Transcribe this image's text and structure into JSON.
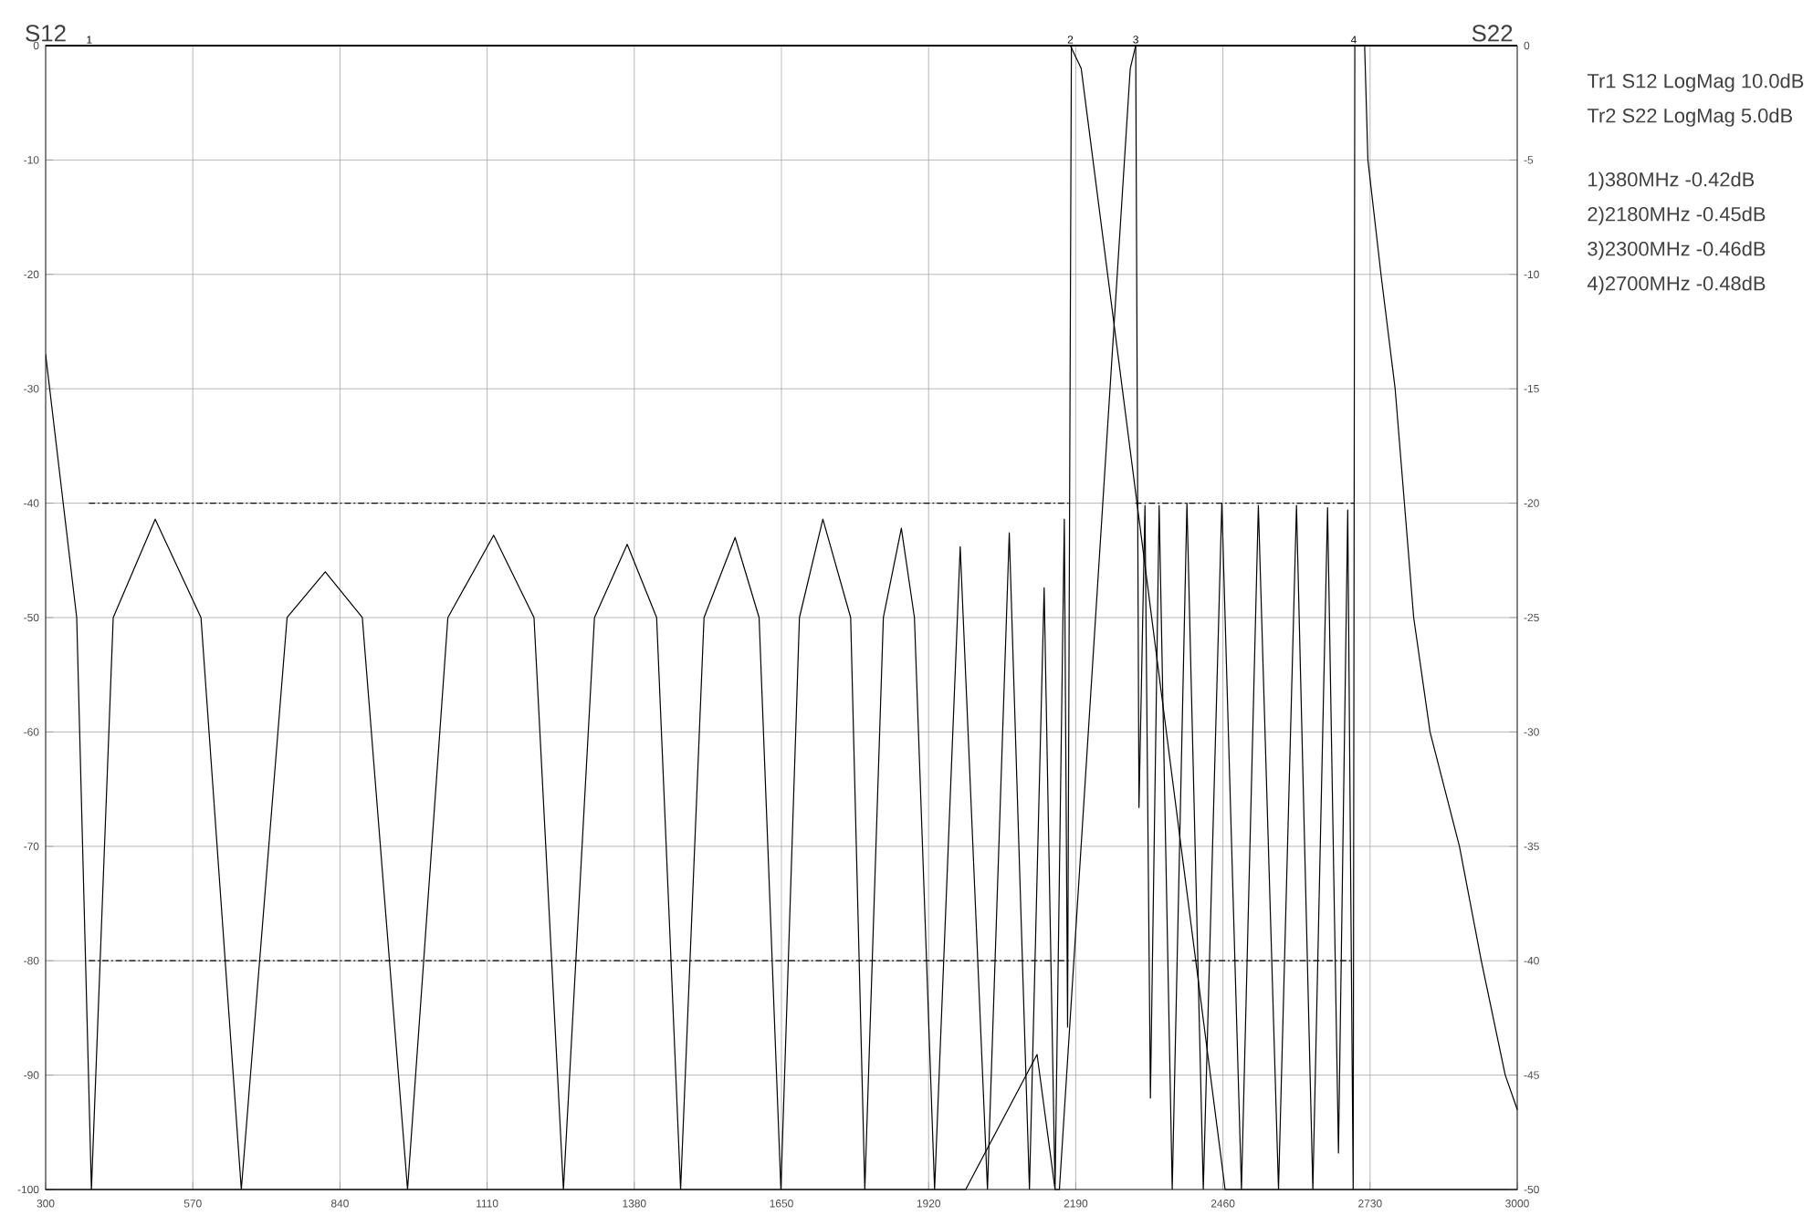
{
  "chart_data": {
    "type": "line",
    "ylabel": "S12",
    "y2label": "S22",
    "xlim": [
      300,
      3000
    ],
    "xticks": [
      300,
      570,
      840,
      1110,
      1380,
      1650,
      1920,
      2190,
      2460,
      2730,
      3000
    ],
    "ylim": [
      -100,
      0
    ],
    "yticks": [
      -100,
      -90,
      -80,
      -70,
      -60,
      -50,
      -40,
      -30,
      -20,
      -10,
      0
    ],
    "y2lim": [
      -50,
      0
    ],
    "y2ticks": [
      -50,
      -45,
      -40,
      -35,
      -30,
      -25,
      -20,
      -15,
      -10,
      -5,
      0
    ],
    "grid": true,
    "marker": "none",
    "series": [
      {
        "color": "#000000",
        "x": [
          300,
          2180,
          2200,
          2464,
          3000
        ],
        "values": [
          0,
          0,
          -2,
          -100,
          -100
        ]
      },
      {
        "color": "#000000",
        "x": [
          300,
          1988,
          2119,
          2152,
          2160,
          2290,
          2300,
          2720,
          2726,
          2750,
          2776,
          2810,
          2840,
          2894,
          2934,
          2978,
          3000
        ],
        "values": [
          -100,
          -100,
          -88.2,
          -100,
          -100,
          -2,
          0,
          0,
          -10,
          -20,
          -30,
          -50,
          -60,
          -70,
          -80,
          -90,
          -93
        ]
      },
      {
        "color": "#000000",
        "axis": "y2",
        "x": [
          300,
          357,
          384,
          424,
          501,
          585,
          659,
          743,
          813,
          881,
          964,
          1038,
          1122,
          1196,
          1250,
          1307,
          1367,
          1421,
          1465,
          1508,
          1565,
          1609,
          1649,
          1683,
          1726,
          1777,
          1803,
          1837,
          1870,
          1894,
          1931,
          1978,
          2028,
          2068,
          2105,
          2132,
          2152,
          2169,
          2175,
          2182,
          2300,
          2306,
          2317,
          2327,
          2343,
          2367,
          2394,
          2424,
          2458,
          2494,
          2525,
          2562,
          2595,
          2625,
          2652,
          2672,
          2689,
          2699,
          2702,
          3000
        ],
        "values": [
          -13.5,
          -25,
          -50,
          -25,
          -20.7,
          -25,
          -50,
          -25,
          -23,
          -25,
          -50,
          -25,
          -21.4,
          -25,
          -50,
          -25,
          -21.8,
          -25,
          -50,
          -25,
          -21.5,
          -25,
          -50,
          -25,
          -20.7,
          -25,
          -50,
          -25,
          -21.1,
          -25,
          -50,
          -21.9,
          -50,
          -21.3,
          -50,
          -23.7,
          -50,
          -20.7,
          -42.9,
          0,
          0,
          -33.3,
          -20.1,
          -46,
          -20.1,
          -50,
          -20,
          -50,
          -20,
          -50,
          -20.1,
          -50,
          -20.1,
          -50,
          -20.2,
          -48.4,
          -20.3,
          -50,
          0,
          0
        ]
      },
      {
        "color": "#000000",
        "line_style": "dashed",
        "x": [
          380,
          2180
        ],
        "values": [
          -40,
          -40
        ]
      },
      {
        "color": "#000000",
        "line_style": "dashed",
        "x": [
          380,
          2180
        ],
        "values": [
          -80,
          -80
        ]
      },
      {
        "color": "#000000",
        "line_style": "dashed",
        "x": [
          2300,
          2700
        ],
        "values": [
          -40,
          -40
        ]
      },
      {
        "color": "#000000",
        "line_style": "dashed",
        "x": [
          2404,
          2700
        ],
        "values": [
          -80,
          -80
        ]
      }
    ],
    "annotations": [
      "Tr1 S12 LogMag 10.0dB",
      "Tr2 S22 LogMag 5.0dB",
      "1)380MHz -0.42dB",
      "2)2180MHz -0.45dB",
      "3)2300MHz -0.46dB",
      "4)2700MHz -0.48dB",
      {
        "text": "1",
        "x": 380,
        "y": 0
      },
      {
        "text": "2",
        "x": 2180,
        "y": 0
      },
      {
        "text": "3",
        "x": 2300,
        "y": 0
      },
      {
        "text": "4",
        "x": 2700,
        "y": 0
      }
    ]
  }
}
